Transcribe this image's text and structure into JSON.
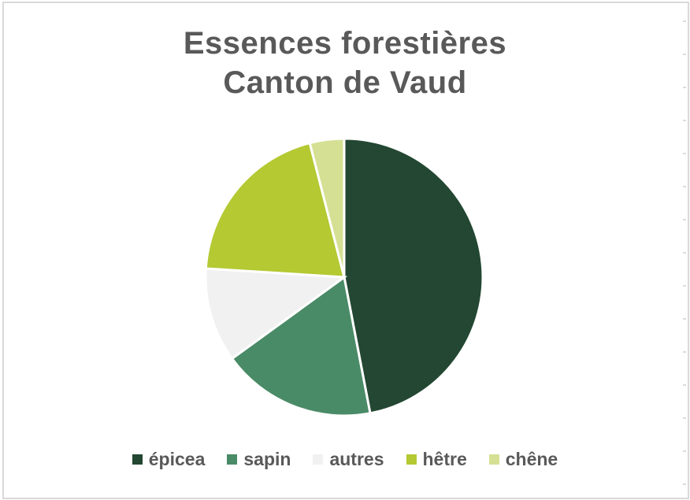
{
  "window": {
    "background_color": "#ffffff",
    "frame_border_color": "#d9d9d9"
  },
  "chart_data": {
    "type": "pie",
    "title": "Essences forestières Canton de Vaud",
    "title_lines": [
      "Essences forestières",
      "Canton de Vaud"
    ],
    "categories": [
      "épicea",
      "sapin",
      "autres",
      "hêtre",
      "chêne"
    ],
    "values": [
      47,
      18,
      11,
      20,
      4
    ],
    "values_unit": "percent-share",
    "colors": [
      "#234732",
      "#4a8b67",
      "#f1f1f1",
      "#b4c932",
      "#d5e094"
    ],
    "start_angle_deg": 0,
    "direction": "clockwise",
    "slice_border_color": "#ffffff",
    "slice_border_width": 3,
    "legend_position": "bottom",
    "legend_marker": "square",
    "text_color": "#595959",
    "grid": "off"
  }
}
